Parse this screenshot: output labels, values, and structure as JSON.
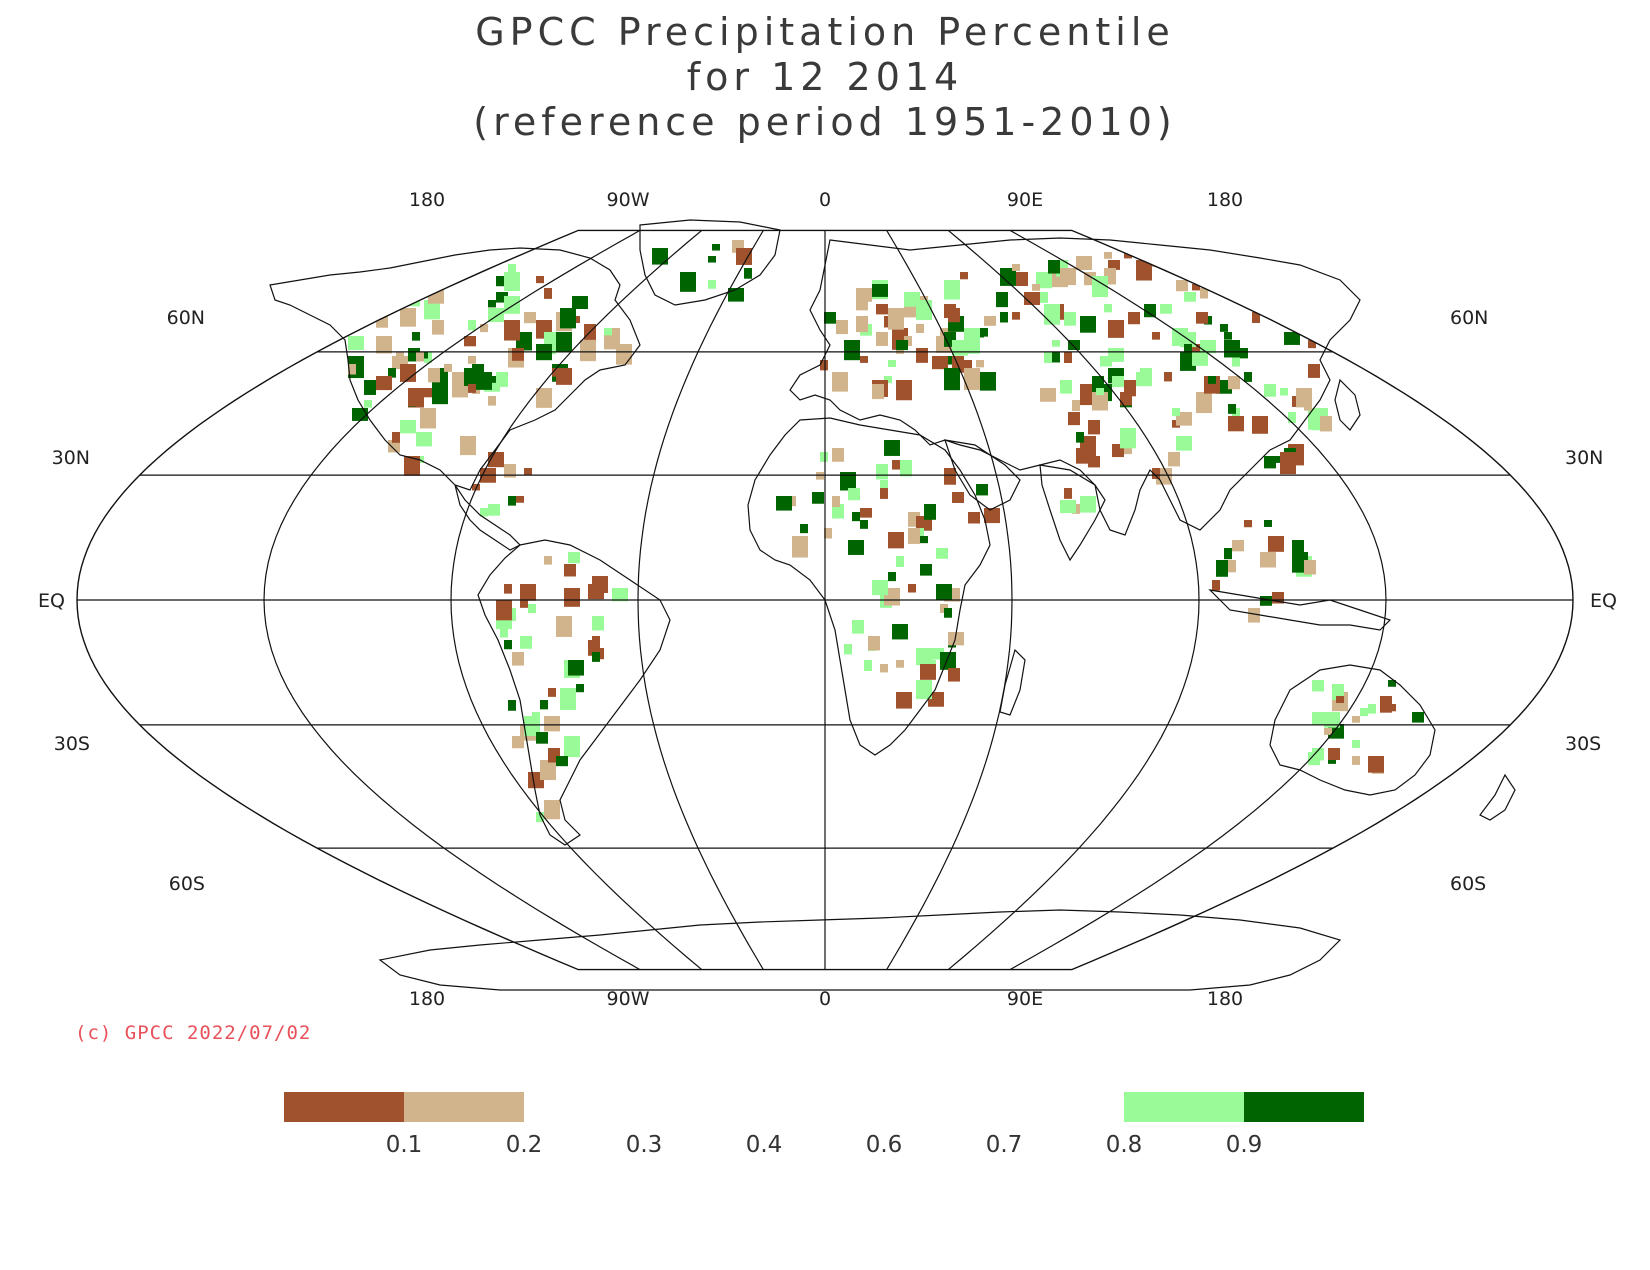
{
  "title": {
    "line1": "GPCC Precipitation Percentile",
    "line2": "for 12 2014",
    "line3": "(reference period 1951-2010)"
  },
  "copyright": "(c) GPCC 2022/07/02",
  "map": {
    "projection": "Robinson",
    "lon_labels_top": [
      "180",
      "90W",
      "0",
      "90E",
      "180"
    ],
    "lon_labels_bottom": [
      "180",
      "90W",
      "0",
      "90E",
      "180"
    ],
    "lat_labels": {
      "60N": "60N",
      "30N": "30N",
      "EQ": "EQ",
      "30S": "30S",
      "60S": "60S"
    },
    "gridlines": true
  },
  "legend": {
    "colors": {
      "c1": "#a0522d",
      "c2": "#d2b48c",
      "c8": "#98fb98",
      "c9": "#006400"
    },
    "ticks": [
      "0.1",
      "0.2",
      "0.3",
      "0.4",
      "0.6",
      "0.7",
      "0.8",
      "0.9"
    ]
  }
}
